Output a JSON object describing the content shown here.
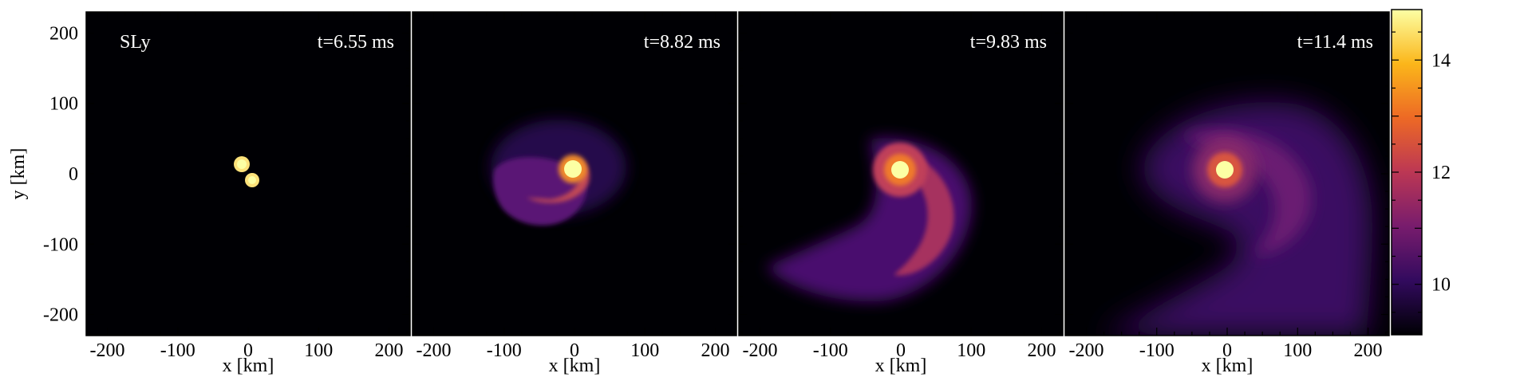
{
  "chart_data": {
    "type": "heatmap",
    "model_label": "SLy",
    "xlabel": "x [km]",
    "ylabel": "y [km]",
    "xlim": [
      -230,
      230
    ],
    "ylim": [
      -230,
      230
    ],
    "x_ticks": [
      -200,
      -100,
      0,
      100,
      200
    ],
    "y_ticks": [
      -200,
      -100,
      0,
      100,
      200
    ],
    "colorbar": {
      "range": [
        9.1,
        14.9
      ],
      "ticks": [
        10,
        12,
        14
      ],
      "colormap": [
        "#000004",
        "#320a5e",
        "#781c6d",
        "#bc3754",
        "#ed6925",
        "#fbb61a",
        "#fcffa4"
      ]
    },
    "panels": [
      {
        "time_label": "t=6.55 ms"
      },
      {
        "time_label": "t=8.82 ms"
      },
      {
        "time_label": "t=9.83 ms"
      },
      {
        "time_label": "t=11.4 ms"
      }
    ]
  }
}
